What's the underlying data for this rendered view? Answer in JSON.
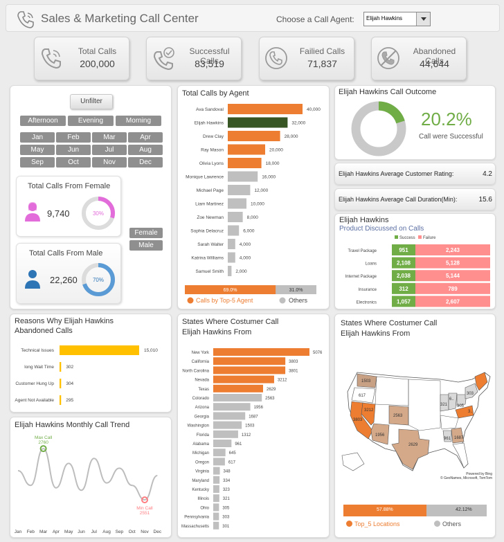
{
  "header": {
    "title": "Sales & Marketing Call Center",
    "agent_label": "Choose a Call Agent:",
    "agent_value": "Elijah Hawkins",
    "phone_icon": "phone-icon"
  },
  "kpis": [
    {
      "label": "Total Calls",
      "value": "200,000",
      "icon": "phone-icon"
    },
    {
      "label": "Successful Calls",
      "value": "83,519",
      "icon": "phone-check-icon"
    },
    {
      "label": "Failied Calls",
      "value": "71,837",
      "icon": "phone-fail-icon"
    },
    {
      "label": "Abandoned Calls",
      "value": "44,644",
      "icon": "phone-blocked-icon"
    }
  ],
  "filters": {
    "unfilter": "Unfilter",
    "times": [
      "Afternoon",
      "Evening",
      "Morning"
    ],
    "months": [
      "Jan",
      "Feb",
      "Mar",
      "Apr",
      "May",
      "Jun",
      "Jul",
      "Aug",
      "Sep",
      "Oct",
      "Nov",
      "Dec"
    ],
    "genders": [
      "Female",
      "Male"
    ]
  },
  "female": {
    "title": "Total Calls From Female",
    "value": "9,740",
    "pct": 30,
    "pct_label": "30%",
    "color": "#e26cd9"
  },
  "male": {
    "title": "Total Calls From Male",
    "value": "22,260",
    "pct": 70,
    "pct_label": "70%",
    "color": "#5b9bd5"
  },
  "colors": {
    "orange": "#ed7d31",
    "dark_green": "#375623",
    "gray": "#bfbfbf",
    "green": "#70ad47",
    "red": "#ff8f8f",
    "yellow": "#ffc000",
    "text": "#444444"
  },
  "outcome": {
    "title": "Elijah Hawkins Call Outcome",
    "pct_label": "20.2%",
    "sub": "Call were Successful",
    "pct": 20.2
  },
  "rating": {
    "label": "Elijah Hawkins Average Customer Rating:",
    "value": "4.2"
  },
  "duration": {
    "label": "Elijah Hawkins Average Call Duration(Min):",
    "value": "15.6"
  },
  "donut_labels": {
    "female": "30%",
    "male": "70%"
  },
  "chart_data": [
    {
      "type": "bar",
      "title": "Total Calls by Agent",
      "categories": [
        "Ava Sandoval",
        "Elijah Hawkins",
        "Drew Clay",
        "Ray Mason",
        "Olivia Lyons",
        "Monique Lawrence",
        "Michael Page",
        "Liam Martinez",
        "Zoe Newman",
        "Sophia Delacruz",
        "Sarah Walter",
        "Katrina Williams",
        "Samuel Smith"
      ],
      "values": [
        40000,
        32000,
        28000,
        20000,
        18000,
        16000,
        12000,
        10000,
        8000,
        6000,
        4000,
        4000,
        2000
      ],
      "value_labels": [
        "40,000",
        "32,000",
        "28,000",
        "20,000",
        "18,000",
        "16,000",
        "12,000",
        "10,000",
        "8,000",
        "6,000",
        "4,000",
        "4,000",
        "2,000"
      ],
      "highlight": [
        0,
        1,
        2,
        3,
        4
      ],
      "selected": 1,
      "top5_share": 69.0,
      "top5_label": "69.0%",
      "others_label": "31.0%",
      "legend": [
        "Calls by Top-5 Agent",
        "Others"
      ],
      "xlim": [
        0,
        40000
      ]
    },
    {
      "type": "bar",
      "title": "Elijah Hawkins Product Discussed on Calls",
      "title_line1": "Elijah Hawkins",
      "title_line2": "Product Discussed on Calls",
      "categories": [
        "Travel Package",
        "Loans",
        "Internet Package",
        "Insurance",
        "Electronics"
      ],
      "series": [
        {
          "name": "Success",
          "values": [
            951,
            2108,
            2038,
            312,
            1057
          ],
          "labels": [
            "951",
            "2,108",
            "2,038",
            "312",
            "1,057"
          ]
        },
        {
          "name": "Failure",
          "values": [
            2243,
            5128,
            5144,
            789,
            2607
          ],
          "labels": [
            "2,243",
            "5,128",
            "5,144",
            "789",
            "2,607"
          ]
        }
      ]
    },
    {
      "type": "bar",
      "title_line1": "Reasons Why Elijah Hawkins",
      "title_line2": "Abandoned Calls",
      "categories": [
        "Technical Issues",
        "long Wait Time",
        "Customer Hung Up",
        "Agent Not Available"
      ],
      "values": [
        15010,
        302,
        304,
        295
      ],
      "value_labels": [
        "15,010",
        "302",
        "304",
        "295"
      ],
      "xlim": [
        0,
        15010
      ]
    },
    {
      "type": "line",
      "title": "Elijah Hawkins Monthly Call Trend",
      "categories": [
        "Jan",
        "Feb",
        "Mar",
        "Apr",
        "May",
        "Jun",
        "Jul",
        "Aug",
        "Sep",
        "Oct",
        "Nov",
        "Dec"
      ],
      "values": [
        2670,
        2610,
        2760,
        2600,
        2700,
        2590,
        2720,
        2620,
        2680,
        2610,
        2551,
        2650
      ],
      "max_label": "Max Call",
      "max_value": "2760",
      "min_label": "Min Call",
      "min_value": "2551",
      "ylim": [
        2540,
        2780
      ]
    },
    {
      "type": "bar",
      "title_line1": "States Where Costumer Call",
      "title_line2": "Elijah Hawkins From",
      "categories": [
        "New York",
        "California",
        "North Carolina",
        "Nevada",
        "Texas",
        "Colorado",
        "Arizona",
        "Georgia",
        "Washington",
        "Florida",
        "Alabama",
        "Michigan",
        "Oregon",
        "Virginia",
        "Maryland",
        "Kentucky",
        "Illinois",
        "Ohio",
        "Pennsylvania",
        "Massachusetts"
      ],
      "values": [
        5076,
        3803,
        3801,
        3212,
        2629,
        2563,
        1956,
        1687,
        1503,
        1312,
        961,
        645,
        617,
        348,
        334,
        323,
        321,
        305,
        303,
        301
      ],
      "highlight": [
        0,
        1,
        2,
        3,
        4
      ],
      "xlim": [
        0,
        5076
      ]
    }
  ],
  "map": {
    "title_line1": "States Where Costumer Call",
    "title_line2": "Elijah Hawkins From",
    "labels": [
      "1503",
      "617",
      "3803",
      "3212",
      "1956",
      "2563",
      "2629",
      "321",
      "6..",
      "305",
      "303",
      "3..",
      "961",
      "1687"
    ],
    "credit1": "Powered by Bing",
    "credit2": "© GeoNames, Microsoft, TomTom",
    "top5_label": "57.88%",
    "others_label": "42.12%",
    "top5_share": 57.88,
    "legend": [
      "Top_5 Locations",
      "Others"
    ]
  }
}
